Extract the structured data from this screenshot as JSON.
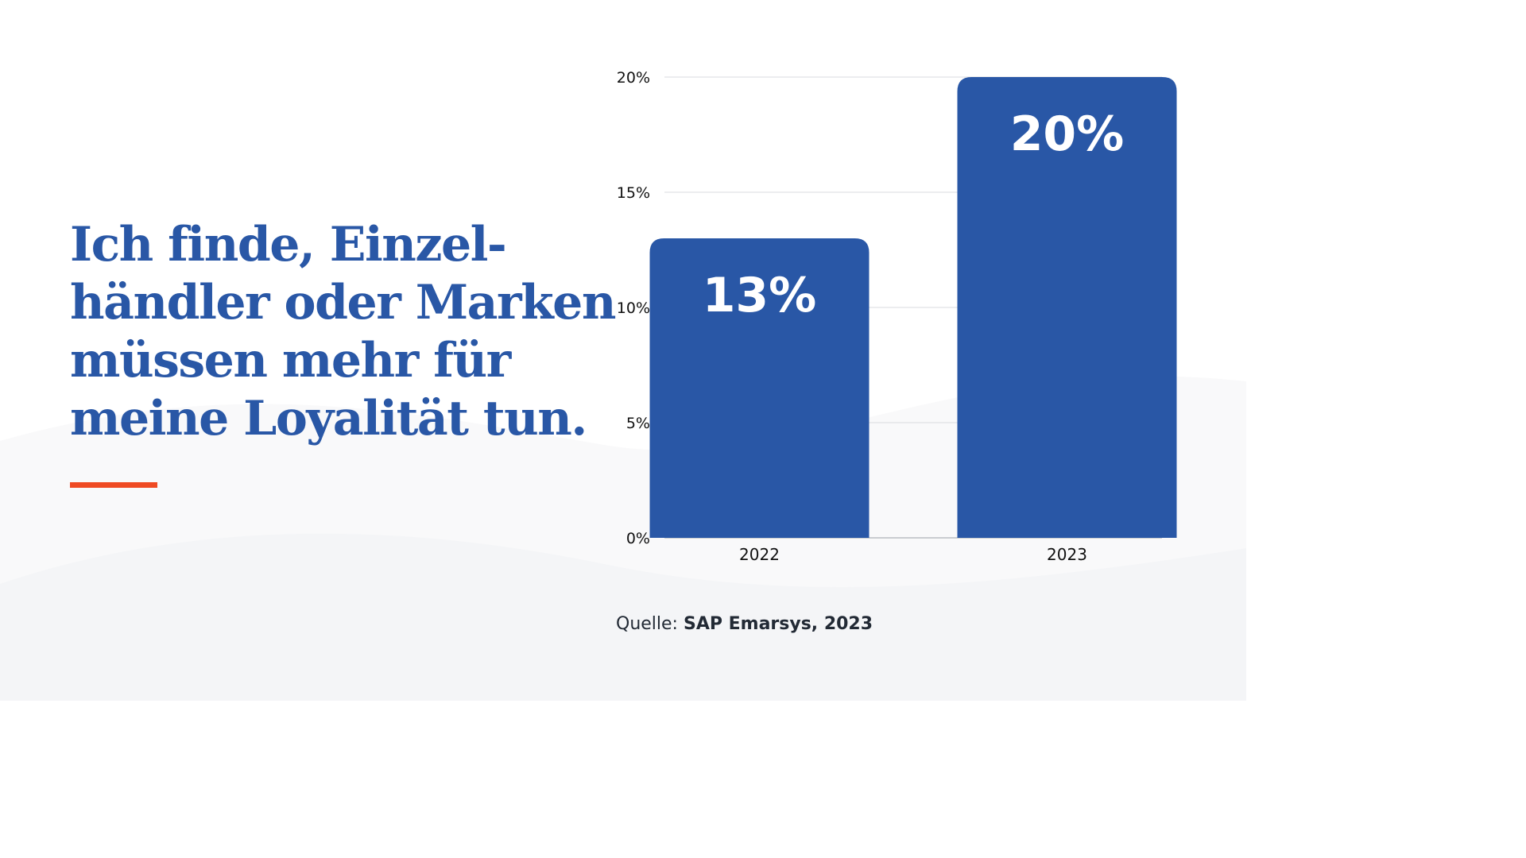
{
  "headline": {
    "lines": [
      "Ich finde, Einzel-",
      "händler oder Marken",
      "müssen mehr für",
      "meine Loyalität tun."
    ]
  },
  "source": {
    "prefix": "Quelle:",
    "name": "SAP Emarsys, 2023"
  },
  "colors": {
    "bar": "#2957a6",
    "headline": "#2957a6",
    "accent": "#ef4a23",
    "wave": "#f4f5f7"
  },
  "chart_data": {
    "type": "bar",
    "categories": [
      "2022",
      "2023"
    ],
    "values": [
      13,
      20
    ],
    "data_labels": [
      "13%",
      "20%"
    ],
    "y_ticks": [
      "0%",
      "5%",
      "10%",
      "15%",
      "20%"
    ],
    "ylim": [
      0,
      20
    ],
    "grid": true,
    "legend": "none",
    "title": "",
    "xlabel": "",
    "ylabel": ""
  }
}
